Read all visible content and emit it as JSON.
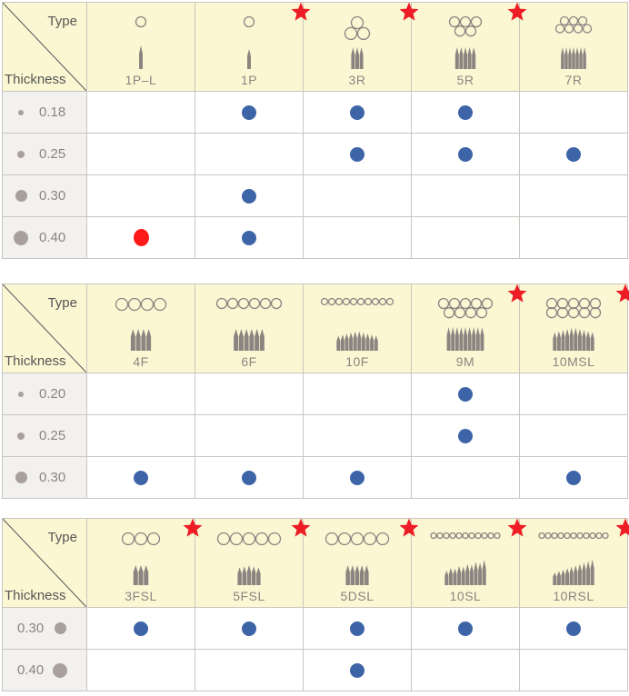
{
  "corner": {
    "type_label": "Type",
    "thickness_label": "Thickness"
  },
  "colors": {
    "header_bg": "#fbf7d3",
    "row_header_bg": "#f2f1f0",
    "available": "#3e64a8",
    "highlight": "#ff1a1a",
    "star": "#ee1c25"
  },
  "tables": [
    {
      "name": "round-liner-table",
      "types": [
        {
          "label": "1P–L",
          "icon": "single-needle-long-icon",
          "star": false
        },
        {
          "label": "1P",
          "icon": "single-needle-icon",
          "star": true
        },
        {
          "label": "3R",
          "icon": "three-round-needle-icon",
          "star": true
        },
        {
          "label": "5R",
          "icon": "five-round-needle-icon",
          "star": true
        },
        {
          "label": "7R",
          "icon": "seven-round-needle-icon",
          "star": false
        }
      ],
      "rows": [
        {
          "thickness": "0.18",
          "cells": [
            "",
            "dot",
            "dot",
            "dot",
            ""
          ]
        },
        {
          "thickness": "0.25",
          "cells": [
            "",
            "",
            "dot",
            "dot",
            "dot"
          ]
        },
        {
          "thickness": "0.30",
          "cells": [
            "",
            "dot",
            "",
            "",
            ""
          ]
        },
        {
          "thickness": "0.40",
          "cells": [
            "red",
            "dot",
            "",
            "",
            ""
          ]
        }
      ]
    },
    {
      "name": "flat-magnum-table",
      "types": [
        {
          "label": "4F",
          "icon": "four-flat-needle-icon",
          "star": false
        },
        {
          "label": "6F",
          "icon": "six-flat-needle-icon",
          "star": false
        },
        {
          "label": "10F",
          "icon": "ten-flat-needle-icon",
          "star": false
        },
        {
          "label": "9M",
          "icon": "nine-magnum-needle-icon",
          "star": true
        },
        {
          "label": "10MSL",
          "icon": "ten-magnum-soft-needle-icon",
          "star": true
        }
      ],
      "rows": [
        {
          "thickness": "0.20",
          "cells": [
            "",
            "",
            "",
            "dot",
            ""
          ]
        },
        {
          "thickness": "0.25",
          "cells": [
            "",
            "",
            "",
            "dot",
            ""
          ]
        },
        {
          "thickness": "0.30",
          "cells": [
            "dot",
            "dot",
            "dot",
            "",
            "dot"
          ]
        }
      ]
    },
    {
      "name": "soft-liner-table",
      "types": [
        {
          "label": "3FSL",
          "icon": "three-flat-soft-needle-icon",
          "star": true
        },
        {
          "label": "5FSL",
          "icon": "five-flat-soft-needle-icon",
          "star": true
        },
        {
          "label": "5DSL",
          "icon": "five-double-soft-needle-icon",
          "star": true
        },
        {
          "label": "10SL",
          "icon": "ten-soft-needle-icon",
          "star": true
        },
        {
          "label": "10RSL",
          "icon": "ten-round-soft-needle-icon",
          "star": true
        }
      ],
      "rows": [
        {
          "thickness": "0.30",
          "cells": [
            "dot",
            "dot",
            "dot",
            "dot",
            "dot"
          ]
        },
        {
          "thickness": "0.40",
          "cells": [
            "",
            "",
            "dot",
            "",
            ""
          ]
        }
      ]
    }
  ]
}
